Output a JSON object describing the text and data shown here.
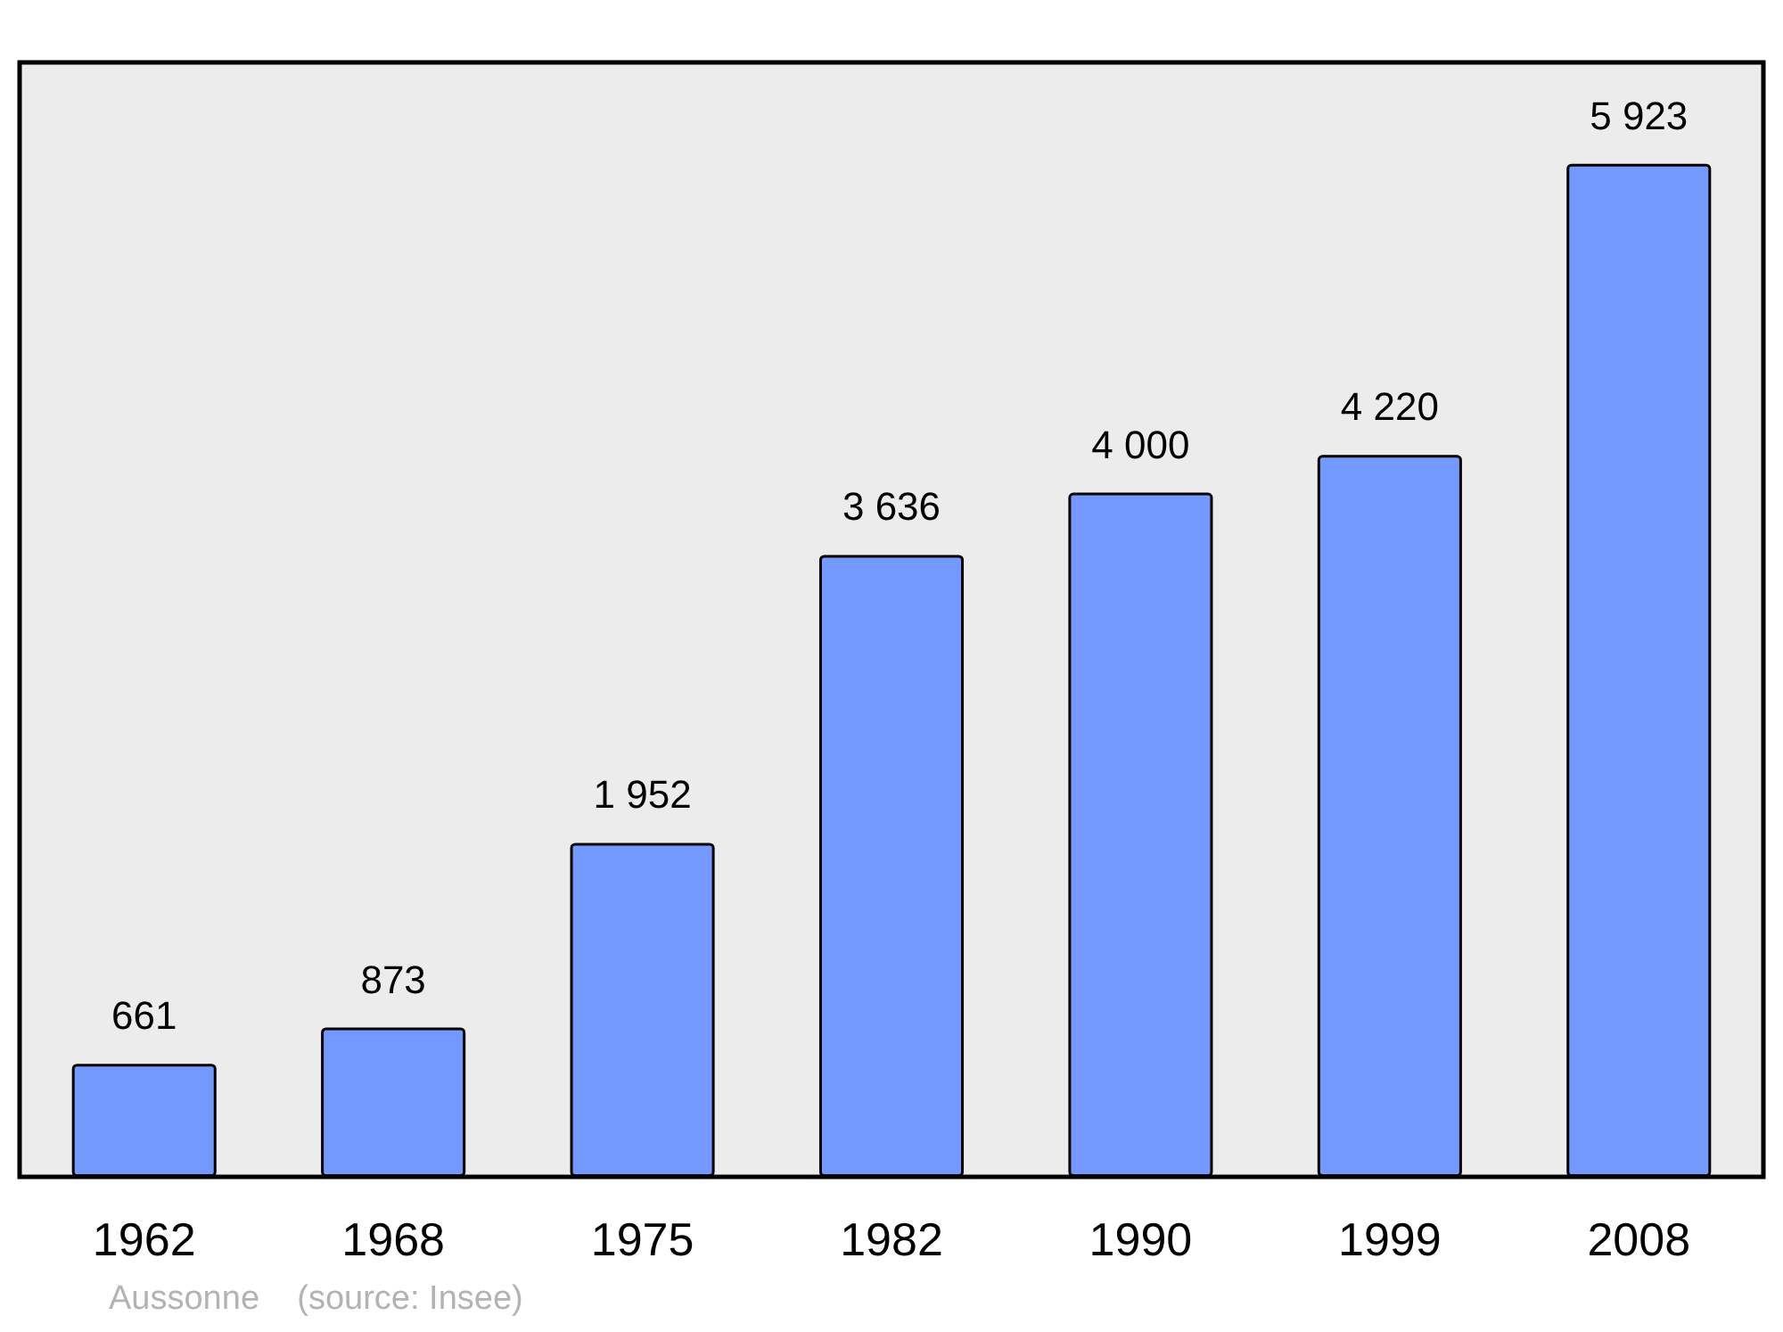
{
  "chart_data": {
    "type": "bar",
    "categories": [
      "1962",
      "1968",
      "1975",
      "1982",
      "1990",
      "1999",
      "2008"
    ],
    "values": [
      661,
      873,
      1952,
      3636,
      4000,
      4220,
      5923
    ],
    "value_labels": [
      "661",
      "873",
      "1 952",
      "3 636",
      "4 000",
      "4 220",
      "5 923"
    ],
    "color": "#7399ff",
    "annotations": [
      "Aussonne    (source: Insee)"
    ]
  }
}
